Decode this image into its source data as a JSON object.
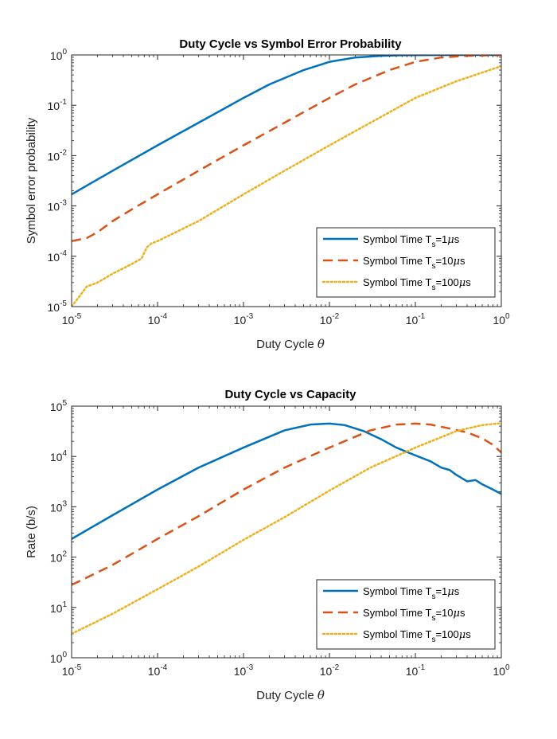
{
  "chart_data": [
    {
      "type": "line",
      "title": "Duty Cycle vs Symbol Error Probability",
      "xlabel": "Duty Cycle",
      "xlabel_symbol": "θ",
      "ylabel": "Symbol error probability",
      "xscale": "log",
      "yscale": "log",
      "xlim": [
        1e-05,
        1
      ],
      "ylim": [
        1e-05,
        1
      ],
      "xticks": [
        {
          "value": 1e-05,
          "base": "10",
          "exp": "-5"
        },
        {
          "value": 0.0001,
          "base": "10",
          "exp": "-4"
        },
        {
          "value": 0.001,
          "base": "10",
          "exp": "-3"
        },
        {
          "value": 0.01,
          "base": "10",
          "exp": "-2"
        },
        {
          "value": 0.1,
          "base": "10",
          "exp": "-1"
        },
        {
          "value": 1,
          "base": "10",
          "exp": "0"
        }
      ],
      "yticks": [
        {
          "value": 1e-05,
          "base": "10",
          "exp": "-5"
        },
        {
          "value": 0.0001,
          "base": "10",
          "exp": "-4"
        },
        {
          "value": 0.001,
          "base": "10",
          "exp": "-3"
        },
        {
          "value": 0.01,
          "base": "10",
          "exp": "-2"
        },
        {
          "value": 0.1,
          "base": "10",
          "exp": "-1"
        },
        {
          "value": 1,
          "base": "10",
          "exp": "0"
        }
      ],
      "grid": false,
      "legend_position": "bottom-right",
      "series": [
        {
          "name": "Symbol Time T_s=1 μs",
          "legend": {
            "prefix": "Symbol Time T",
            "sub": "s",
            "suffix": "=1",
            "unit": "μs"
          },
          "color": "#0072BD",
          "style": "solid",
          "x": [
            1e-05,
            3e-05,
            0.0001,
            0.0003,
            0.001,
            0.002,
            0.005,
            0.01,
            0.02,
            0.04,
            0.07,
            0.1,
            0.2,
            0.5,
            1
          ],
          "y": [
            0.0017,
            0.005,
            0.016,
            0.045,
            0.14,
            0.26,
            0.5,
            0.73,
            0.89,
            0.96,
            0.985,
            0.992,
            0.997,
            0.999,
            1.0
          ]
        },
        {
          "name": "Symbol Time T_s=10 μs",
          "legend": {
            "prefix": "Symbol Time T",
            "sub": "s",
            "suffix": "=10",
            "unit": "μs"
          },
          "color": "#D95319",
          "style": "dashed",
          "x": [
            1e-05,
            1.5e-05,
            2e-05,
            3e-05,
            5e-05,
            0.0001,
            0.0003,
            0.001,
            0.003,
            0.01,
            0.02,
            0.05,
            0.1,
            0.2,
            0.4,
            0.7,
            1
          ],
          "y": [
            0.0002,
            0.00023,
            0.0003,
            0.0005,
            0.00085,
            0.0017,
            0.005,
            0.016,
            0.045,
            0.14,
            0.26,
            0.5,
            0.73,
            0.89,
            0.96,
            0.985,
            0.99
          ]
        },
        {
          "name": "Symbol Time T_s=100 μs",
          "legend": {
            "prefix": "Symbol Time T",
            "sub": "s",
            "suffix": "=100",
            "unit": "μs"
          },
          "color": "#EDB120",
          "style": "dotted",
          "x": [
            1e-05,
            1.2e-05,
            1.5e-05,
            2e-05,
            3e-05,
            5e-05,
            6.5e-05,
            7.5e-05,
            8.5e-05,
            0.0001,
            0.0003,
            0.001,
            0.003,
            0.01,
            0.03,
            0.1,
            0.3,
            1
          ],
          "y": [
            1e-05,
            1.5e-05,
            2.5e-05,
            3e-05,
            4.5e-05,
            7e-05,
            9e-05,
            0.00015,
            0.00018,
            0.0002,
            0.0005,
            0.0017,
            0.005,
            0.016,
            0.045,
            0.14,
            0.3,
            0.6
          ]
        }
      ]
    },
    {
      "type": "line",
      "title": "Duty Cycle vs Capacity",
      "xlabel": "Duty Cycle",
      "xlabel_symbol": "θ",
      "ylabel": "Rate (b/s)",
      "xscale": "log",
      "yscale": "log",
      "xlim": [
        1e-05,
        1
      ],
      "ylim": [
        1,
        100000.0
      ],
      "xticks": [
        {
          "value": 1e-05,
          "base": "10",
          "exp": "-5"
        },
        {
          "value": 0.0001,
          "base": "10",
          "exp": "-4"
        },
        {
          "value": 0.001,
          "base": "10",
          "exp": "-3"
        },
        {
          "value": 0.01,
          "base": "10",
          "exp": "-2"
        },
        {
          "value": 0.1,
          "base": "10",
          "exp": "-1"
        },
        {
          "value": 1,
          "base": "10",
          "exp": "0"
        }
      ],
      "yticks": [
        {
          "value": 1,
          "base": "10",
          "exp": "0"
        },
        {
          "value": 10,
          "base": "10",
          "exp": "1"
        },
        {
          "value": 100,
          "base": "10",
          "exp": "2"
        },
        {
          "value": 1000,
          "base": "10",
          "exp": "3"
        },
        {
          "value": 10000,
          "base": "10",
          "exp": "4"
        },
        {
          "value": 100000,
          "base": "10",
          "exp": "5"
        }
      ],
      "grid": false,
      "legend_position": "bottom-right",
      "series": [
        {
          "name": "Symbol Time T_s=1 μs",
          "legend": {
            "prefix": "Symbol Time T",
            "sub": "s",
            "suffix": "=1",
            "unit": "μs"
          },
          "color": "#0072BD",
          "style": "solid",
          "x": [
            1e-05,
            3e-05,
            0.0001,
            0.0003,
            0.001,
            0.003,
            0.006,
            0.01,
            0.015,
            0.025,
            0.04,
            0.06,
            0.1,
            0.15,
            0.2,
            0.25,
            0.3,
            0.4,
            0.5,
            0.6,
            0.8,
            1
          ],
          "y": [
            230,
            680,
            2200,
            6000,
            15000,
            33000,
            43000,
            45000,
            42000,
            32000,
            22000,
            15000,
            10500,
            8000,
            6000,
            5400,
            4300,
            3200,
            3400,
            2800,
            2200,
            1800
          ]
        },
        {
          "name": "Symbol Time T_s=10 μs",
          "legend": {
            "prefix": "Symbol Time T",
            "sub": "s",
            "suffix": "=10",
            "unit": "μs"
          },
          "color": "#D95319",
          "style": "dashed",
          "x": [
            1e-05,
            3e-05,
            0.0001,
            0.0003,
            0.001,
            0.003,
            0.01,
            0.03,
            0.06,
            0.1,
            0.15,
            0.25,
            0.4,
            0.6,
            0.8,
            1
          ],
          "y": [
            28,
            70,
            230,
            650,
            2200,
            6000,
            15000,
            33000,
            43000,
            45000,
            43000,
            36000,
            30000,
            23000,
            17000,
            12000
          ]
        },
        {
          "name": "Symbol Time T_s=100 μs",
          "legend": {
            "prefix": "Symbol Time T",
            "sub": "s",
            "suffix": "=100",
            "unit": "μs"
          },
          "color": "#EDB120",
          "style": "dotted",
          "x": [
            1e-05,
            3e-05,
            0.0001,
            0.0003,
            0.001,
            0.003,
            0.01,
            0.03,
            0.1,
            0.3,
            0.6,
            1
          ],
          "y": [
            3,
            7.5,
            23,
            65,
            220,
            620,
            2100,
            6000,
            15000,
            32000,
            42000,
            46000
          ]
        }
      ]
    }
  ]
}
